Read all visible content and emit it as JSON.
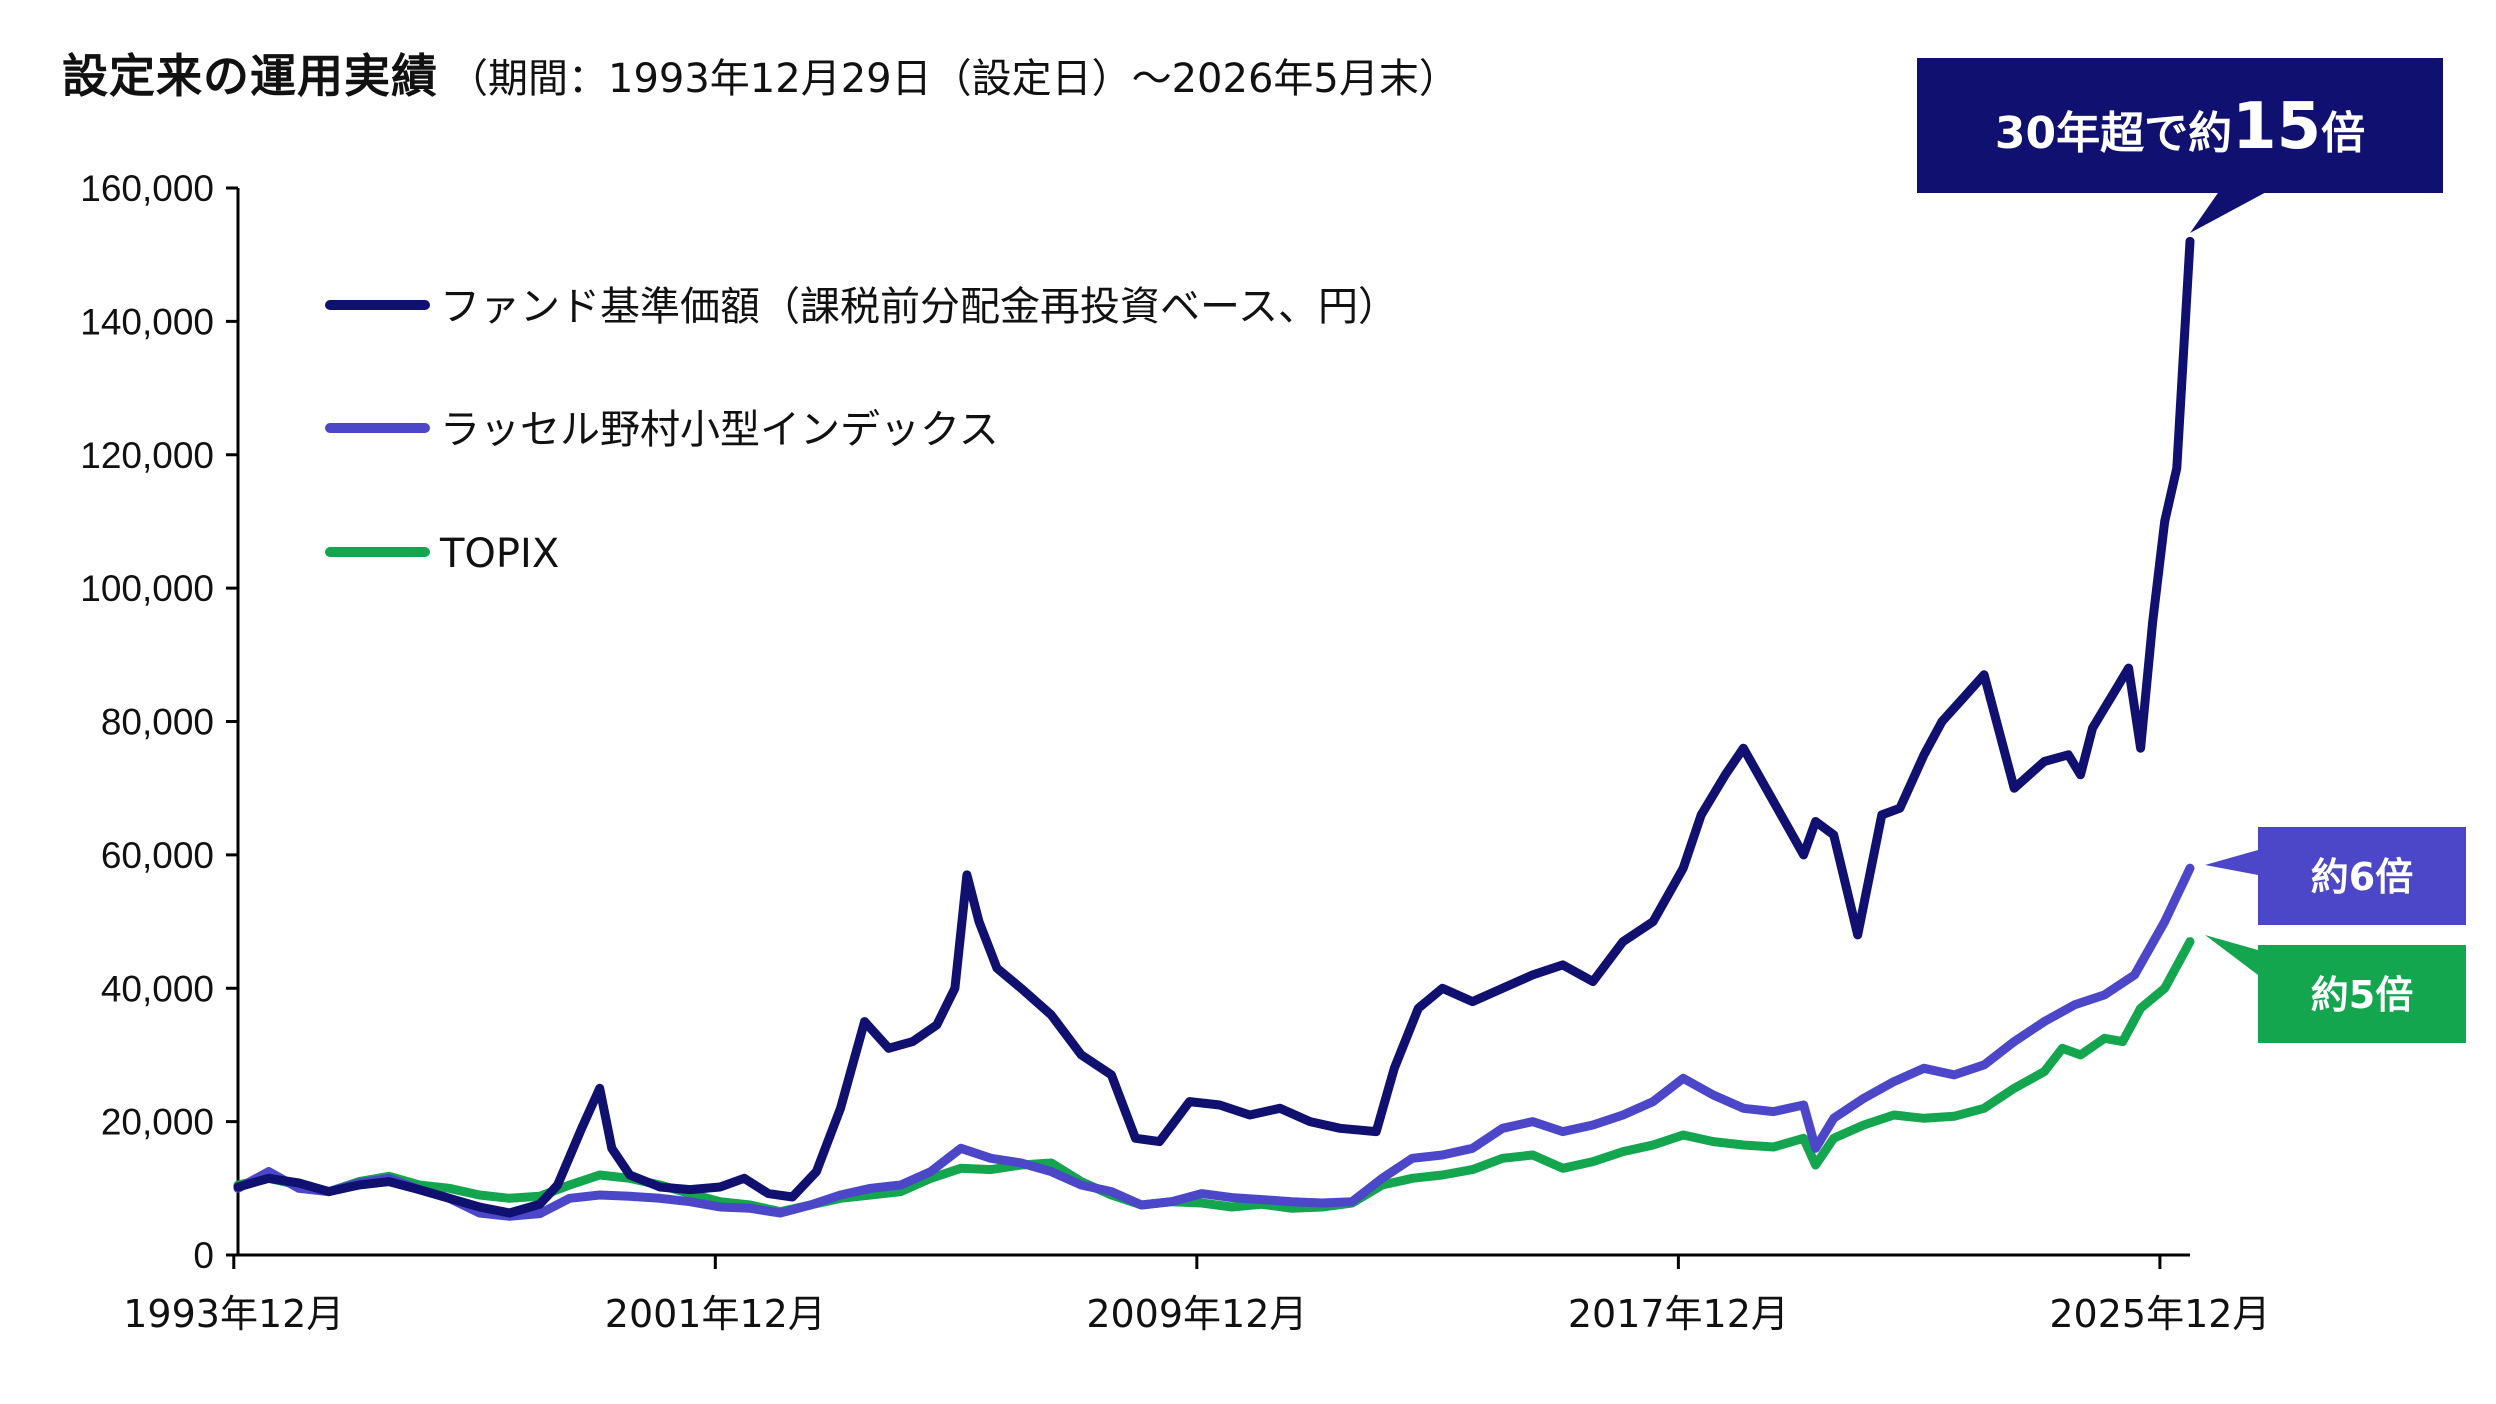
{
  "title": "設定来の運用実績",
  "subtitle": "（期間：1993年12月29日（設定日）～2026年5月末）",
  "chart_data": {
    "type": "line",
    "title": "設定来の運用実績",
    "subtitle": "（期間：1993年12月29日（設定日）～2026年5月末）",
    "xlabel": "",
    "ylabel": "",
    "ylim": [
      0,
      160000
    ],
    "yticks": [
      0,
      20000,
      40000,
      60000,
      80000,
      100000,
      120000,
      140000,
      160000
    ],
    "ytick_labels": [
      "0",
      "20,000",
      "40,000",
      "60,000",
      "80,000",
      "100,000",
      "120,000",
      "140,000",
      "160,000"
    ],
    "xlim": [
      1993.99,
      2026.42
    ],
    "xticks": [
      1993.92,
      2001.92,
      2009.92,
      2017.92,
      2025.92
    ],
    "xtick_labels": [
      "1993年12月",
      "2001年12月",
      "2009年12月",
      "2017年12月",
      "2025年12月"
    ],
    "grid": false,
    "legend": "top-left",
    "colors": {
      "fund": "#0f1070",
      "russell": "#4b47c8",
      "topix": "#13a64f"
    },
    "series": [
      {
        "name": "ファンド基準価額（課税前分配金再投資ベース、円）",
        "color": "#0f1070",
        "x": [
          1993.99,
          1994.5,
          1995.0,
          1995.5,
          1996.0,
          1996.5,
          1997.0,
          1997.5,
          1998.0,
          1998.5,
          1999.0,
          1999.3,
          1999.7,
          2000.0,
          2000.2,
          2000.5,
          2001.0,
          2001.5,
          2002.0,
          2002.4,
          2002.8,
          2003.2,
          2003.6,
          2004.0,
          2004.4,
          2004.8,
          2005.2,
          2005.6,
          2005.9,
          2006.1,
          2006.3,
          2006.6,
          2007.0,
          2007.5,
          2008.0,
          2008.5,
          2008.9,
          2009.3,
          2009.8,
          2010.3,
          2010.8,
          2011.3,
          2011.8,
          2012.3,
          2012.9,
          2013.2,
          2013.6,
          2014.0,
          2014.5,
          2015.0,
          2015.5,
          2016.0,
          2016.5,
          2017.0,
          2017.5,
          2018.0,
          2018.3,
          2018.7,
          2019.0,
          2019.5,
          2020.0,
          2020.2,
          2020.5,
          2020.9,
          2021.3,
          2021.6,
          2022.0,
          2022.3,
          2022.7,
          2023.0,
          2023.5,
          2024.0,
          2024.4,
          2024.6,
          2024.8,
          2025.0,
          2025.2,
          2025.4,
          2025.6,
          2025.8,
          2026.0,
          2026.2,
          2026.42
        ],
        "y": [
          10200,
          11500,
          10800,
          9500,
          10500,
          11000,
          9800,
          8500,
          7200,
          6300,
          7600,
          10500,
          19000,
          25000,
          16000,
          12000,
          10200,
          9800,
          10200,
          11500,
          9200,
          8700,
          12500,
          22000,
          35000,
          31000,
          32000,
          34500,
          40000,
          57000,
          50000,
          43000,
          40000,
          36000,
          30000,
          27000,
          17500,
          17000,
          23000,
          22500,
          21000,
          22000,
          20000,
          19000,
          18500,
          28000,
          37000,
          40000,
          38000,
          40000,
          42000,
          43500,
          41000,
          47000,
          50000,
          58000,
          66000,
          72000,
          76000,
          68000,
          60000,
          65000,
          63000,
          48000,
          66000,
          67000,
          75000,
          80000,
          84000,
          87000,
          70000,
          74000,
          75000,
          72000,
          79000,
          82000,
          85000,
          88000,
          76000,
          95000,
          110000,
          118000,
          152000
        ]
      },
      {
        "name": "ラッセル野村小型インデックス",
        "color": "#4b47c8",
        "x": [
          1993.99,
          1994.5,
          1995.0,
          1995.5,
          1996.0,
          1996.5,
          1997.0,
          1997.5,
          1998.0,
          1998.5,
          1999.0,
          1999.5,
          2000.0,
          2000.5,
          2001.0,
          2001.5,
          2002.0,
          2002.5,
          2003.0,
          2003.5,
          2004.0,
          2004.5,
          2005.0,
          2005.5,
          2006.0,
          2006.5,
          2007.0,
          2007.5,
          2008.0,
          2008.5,
          2009.0,
          2009.5,
          2010.0,
          2010.5,
          2011.0,
          2011.5,
          2012.0,
          2012.5,
          2013.0,
          2013.5,
          2014.0,
          2014.5,
          2015.0,
          2015.5,
          2016.0,
          2016.5,
          2017.0,
          2017.5,
          2018.0,
          2018.5,
          2019.0,
          2019.5,
          2020.0,
          2020.2,
          2020.5,
          2021.0,
          2021.5,
          2022.0,
          2022.5,
          2023.0,
          2023.5,
          2024.0,
          2024.5,
          2025.0,
          2025.5,
          2026.0,
          2026.42
        ],
        "y": [
          10000,
          12500,
          10000,
          9500,
          10800,
          11500,
          9800,
          8500,
          6300,
          5800,
          6200,
          8500,
          9000,
          8800,
          8500,
          8000,
          7200,
          7000,
          6300,
          7500,
          9000,
          10000,
          10500,
          12500,
          16000,
          14500,
          13800,
          12500,
          10500,
          9500,
          7500,
          8000,
          9200,
          8600,
          8300,
          8000,
          7800,
          8000,
          11500,
          14500,
          15000,
          16000,
          19000,
          20000,
          18500,
          19500,
          21000,
          23000,
          26500,
          24000,
          22000,
          21500,
          22500,
          16000,
          20500,
          23500,
          26000,
          28000,
          27000,
          28500,
          32000,
          35000,
          37500,
          39000,
          42000,
          50000,
          58000
        ]
      },
      {
        "name": "TOPIX",
        "color": "#13a64f",
        "x": [
          1993.99,
          1994.5,
          1995.0,
          1995.5,
          1996.0,
          1996.5,
          1997.0,
          1997.5,
          1998.0,
          1998.5,
          1999.0,
          1999.5,
          2000.0,
          2000.5,
          2001.0,
          2001.5,
          2002.0,
          2002.5,
          2003.0,
          2003.5,
          2004.0,
          2004.5,
          2005.0,
          2005.5,
          2006.0,
          2006.5,
          2007.0,
          2007.5,
          2008.0,
          2008.5,
          2009.0,
          2009.5,
          2010.0,
          2010.5,
          2011.0,
          2011.5,
          2012.0,
          2012.5,
          2013.0,
          2013.5,
          2014.0,
          2014.5,
          2015.0,
          2015.5,
          2016.0,
          2016.5,
          2017.0,
          2017.5,
          2018.0,
          2018.5,
          2019.0,
          2019.5,
          2020.0,
          2020.2,
          2020.5,
          2021.0,
          2021.5,
          2022.0,
          2022.5,
          2023.0,
          2023.5,
          2024.0,
          2024.3,
          2024.6,
          2025.0,
          2025.3,
          2025.6,
          2026.0,
          2026.42
        ],
        "y": [
          10500,
          11500,
          10500,
          9500,
          11000,
          11800,
          10500,
          10000,
          9000,
          8500,
          8800,
          10500,
          12000,
          11500,
          10500,
          9200,
          8000,
          7500,
          6500,
          7500,
          8500,
          9000,
          9500,
          11500,
          13000,
          12800,
          13500,
          13800,
          11000,
          9000,
          7500,
          8000,
          7800,
          7200,
          7600,
          7000,
          7200,
          7800,
          10500,
          11500,
          12000,
          12800,
          14500,
          15000,
          13000,
          14000,
          15500,
          16500,
          18000,
          17000,
          16500,
          16200,
          17500,
          13500,
          17500,
          19500,
          21000,
          20500,
          20800,
          22000,
          25000,
          27500,
          31000,
          30000,
          32500,
          32000,
          37000,
          40000,
          47000
        ]
      }
    ],
    "annotations": [
      {
        "text_a": "30年超で約",
        "text_b": "15",
        "text_c": "倍",
        "series": 0,
        "color": "#0f1070"
      },
      {
        "text": "約6倍",
        "series": 1,
        "color": "#4b47c8"
      },
      {
        "text": "約5倍",
        "series": 2,
        "color": "#13a64f"
      }
    ]
  }
}
